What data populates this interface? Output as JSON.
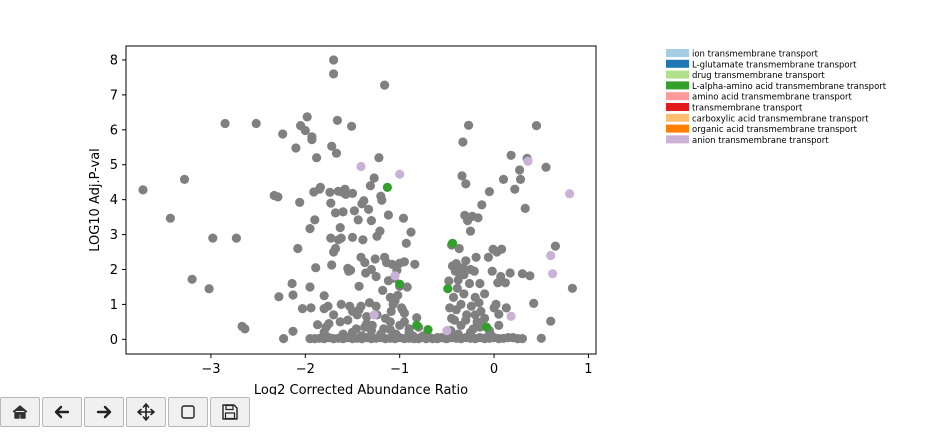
{
  "chart_data": {
    "type": "scatter",
    "title": "",
    "xlabel": "Log2 Corrected Abundance Ratio",
    "ylabel": "LOG10 Adj.P-val",
    "xlim": [
      -3.9,
      1.08
    ],
    "ylim": [
      -0.42,
      8.4
    ],
    "xticks": [
      -3,
      -2,
      -1,
      0,
      1
    ],
    "yticks": [
      0,
      1,
      2,
      3,
      4,
      5,
      6,
      7,
      8
    ],
    "xtick_labels": [
      "−3",
      "−2",
      "−1",
      "0",
      "1"
    ],
    "ytick_labels": [
      "0",
      "1",
      "2",
      "3",
      "4",
      "5",
      "6",
      "7",
      "8"
    ],
    "grid": false,
    "legend_position": "upper-right-outside",
    "legend": [
      {
        "label": "ion transmembrane transport",
        "color": "#a6cee3"
      },
      {
        "label": "L-glutamate transmembrane transport",
        "color": "#1f78b4"
      },
      {
        "label": "drug transmembrane transport",
        "color": "#b2df8a"
      },
      {
        "label": "L-alpha-amino acid transmembrane transport",
        "color": "#33a02c"
      },
      {
        "label": "amino acid transmembrane transport",
        "color": "#fb9a99"
      },
      {
        "label": "transmembrane transport",
        "color": "#e31a1c"
      },
      {
        "label": "carboxylic acid transmembrane transport",
        "color": "#fdbf6f"
      },
      {
        "label": "organic acid transmembrane transport",
        "color": "#ff7f00"
      },
      {
        "label": "anion transmembrane transport",
        "color": "#cab2d6"
      }
    ],
    "background_series": {
      "name": "",
      "color": "#808080",
      "points": [
        [
          -3.72,
          4.28
        ],
        [
          -3.43,
          3.47
        ],
        [
          -3.28,
          4.58
        ],
        [
          -3.2,
          1.72
        ],
        [
          -3.02,
          1.45
        ],
        [
          -2.98,
          2.9
        ],
        [
          -2.85,
          6.18
        ],
        [
          -2.73,
          2.9
        ],
        [
          -2.67,
          0.37
        ],
        [
          -2.64,
          0.3
        ],
        [
          -2.52,
          6.18
        ],
        [
          -2.33,
          4.12
        ],
        [
          -2.29,
          4.08
        ],
        [
          -2.28,
          1.22
        ],
        [
          -2.24,
          5.88
        ],
        [
          -2.23,
          0.02
        ],
        [
          -2.14,
          1.6
        ],
        [
          -2.13,
          1.27
        ],
        [
          -2.13,
          0.23
        ],
        [
          -2.1,
          5.48
        ],
        [
          -2.08,
          2.6
        ],
        [
          -2.06,
          3.92
        ],
        [
          -2.05,
          6.12
        ],
        [
          -2.03,
          0.88
        ],
        [
          -2.0,
          5.98
        ],
        [
          -1.98,
          6.37
        ],
        [
          -1.95,
          1.5
        ],
        [
          -1.94,
          0.9
        ],
        [
          -1.95,
          3.17
        ],
        [
          -1.93,
          5.8
        ],
        [
          -1.93,
          5.72
        ],
        [
          -1.91,
          4.22
        ],
        [
          -1.9,
          3.42
        ],
        [
          -1.89,
          2.05
        ],
        [
          -1.87,
          0.42
        ],
        [
          -1.88,
          5.2
        ],
        [
          -1.85,
          4.3
        ],
        [
          -1.84,
          4.35
        ],
        [
          -1.8,
          1.25
        ],
        [
          -1.8,
          0.88
        ],
        [
          -1.78,
          0.35
        ],
        [
          -1.76,
          0.95
        ],
        [
          -1.74,
          4.21
        ],
        [
          -1.73,
          3.9
        ],
        [
          -1.73,
          2.9
        ],
        [
          -1.72,
          2.13
        ],
        [
          -1.72,
          5.53
        ],
        [
          -1.7,
          8.0
        ],
        [
          -1.7,
          7.6
        ],
        [
          -1.7,
          2.5
        ],
        [
          -1.68,
          3.62
        ],
        [
          -1.68,
          2.6
        ],
        [
          -1.67,
          5.33
        ],
        [
          -1.66,
          6.27
        ],
        [
          -1.65,
          4.24
        ],
        [
          -1.65,
          2.85
        ],
        [
          -1.63,
          0.5
        ],
        [
          -1.63,
          3.2
        ],
        [
          -1.62,
          2.9
        ],
        [
          -1.62,
          1.0
        ],
        [
          -1.61,
          4.22
        ],
        [
          -1.6,
          3.65
        ],
        [
          -1.58,
          4.3
        ],
        [
          -1.57,
          4.15
        ],
        [
          -1.55,
          2.03
        ],
        [
          -1.54,
          1.95
        ],
        [
          -1.53,
          0.95
        ],
        [
          -1.52,
          1.98
        ],
        [
          -1.51,
          6.1
        ],
        [
          -1.5,
          0.8
        ],
        [
          -1.5,
          2.92
        ],
        [
          -1.5,
          4.18
        ],
        [
          -1.48,
          3.68
        ],
        [
          -1.46,
          0.3
        ],
        [
          -1.44,
          3.42
        ],
        [
          -1.43,
          0.85
        ],
        [
          -1.43,
          1.52
        ],
        [
          -1.41,
          0.95
        ],
        [
          -1.41,
          2.35
        ],
        [
          -1.4,
          3.88
        ],
        [
          -1.39,
          2.85
        ],
        [
          -1.38,
          3.97
        ],
        [
          -1.37,
          2.2
        ],
        [
          -1.37,
          0.35
        ],
        [
          -1.36,
          1.9
        ],
        [
          -1.35,
          0.65
        ],
        [
          -1.33,
          3.72
        ],
        [
          -1.32,
          1.05
        ],
        [
          -1.31,
          4.4
        ],
        [
          -1.3,
          2.0
        ],
        [
          -1.3,
          3.4
        ],
        [
          -1.29,
          0.4
        ],
        [
          -1.27,
          4.62
        ],
        [
          -1.26,
          2.3
        ],
        [
          -1.25,
          1.8
        ],
        [
          -1.24,
          2.95
        ],
        [
          -1.24,
          0.7
        ],
        [
          -1.22,
          5.2
        ],
        [
          -1.21,
          3.1
        ],
        [
          -1.2,
          4.1
        ],
        [
          -1.19,
          3.98
        ],
        [
          -1.18,
          1.4
        ],
        [
          -1.17,
          0.3
        ],
        [
          -1.16,
          7.28
        ],
        [
          -1.16,
          2.35
        ],
        [
          -1.14,
          2.2
        ],
        [
          -1.12,
          1.68
        ],
        [
          -1.12,
          3.56
        ],
        [
          -1.1,
          0.28
        ],
        [
          -1.1,
          1.2
        ],
        [
          -1.09,
          0.8
        ],
        [
          -1.08,
          2.15
        ],
        [
          -1.07,
          1.0
        ],
        [
          -1.06,
          1.75
        ],
        [
          -1.04,
          0.15
        ],
        [
          -1.03,
          1.98
        ],
        [
          -1.02,
          1.26
        ],
        [
          -1.0,
          2.18
        ],
        [
          -1.0,
          1.52
        ],
        [
          -0.98,
          0.9
        ],
        [
          -0.97,
          0.85
        ],
        [
          -0.96,
          3.47
        ],
        [
          -0.95,
          2.22
        ],
        [
          -0.95,
          0.5
        ],
        [
          -0.93,
          2.75
        ],
        [
          -0.92,
          1.5
        ],
        [
          -0.9,
          0.3
        ],
        [
          -0.88,
          3.07
        ],
        [
          -0.86,
          0.1
        ],
        [
          -0.84,
          2.15
        ],
        [
          -0.82,
          0.62
        ],
        [
          -0.8,
          0.35
        ],
        [
          -0.78,
          0.05
        ],
        [
          -0.75,
          0.1
        ],
        [
          -0.72,
          0.02
        ],
        [
          -0.68,
          0.05
        ],
        [
          -0.65,
          0.02
        ],
        [
          -0.6,
          0.02
        ],
        [
          -0.56,
          0.05
        ],
        [
          -0.52,
          0.03
        ],
        [
          -0.48,
          1.67
        ],
        [
          -0.47,
          0.9
        ],
        [
          -0.46,
          0.25
        ],
        [
          -0.45,
          2.7
        ],
        [
          -0.44,
          2.1
        ],
        [
          -0.43,
          1.2
        ],
        [
          -0.42,
          0.55
        ],
        [
          -0.41,
          1.95
        ],
        [
          -0.4,
          2.17
        ],
        [
          -0.39,
          1.46
        ],
        [
          -0.38,
          0.15
        ],
        [
          -0.37,
          2.6
        ],
        [
          -0.36,
          1.85
        ],
        [
          -0.35,
          0.4
        ],
        [
          -0.34,
          4.68
        ],
        [
          -0.33,
          5.65
        ],
        [
          -0.33,
          2.05
        ],
        [
          -0.32,
          1.3
        ],
        [
          -0.31,
          3.55
        ],
        [
          -0.3,
          4.45
        ],
        [
          -0.3,
          2.25
        ],
        [
          -0.29,
          0.7
        ],
        [
          -0.28,
          3.4
        ],
        [
          -0.27,
          6.13
        ],
        [
          -0.26,
          1.6
        ],
        [
          -0.25,
          3.1
        ],
        [
          -0.25,
          2.0
        ],
        [
          -0.24,
          0.95
        ],
        [
          -0.23,
          3.52
        ],
        [
          -0.22,
          0.3
        ],
        [
          -0.21,
          1.95
        ],
        [
          -0.2,
          1.2
        ],
        [
          -0.19,
          2.35
        ],
        [
          -0.18,
          0.5
        ],
        [
          -0.17,
          3.48
        ],
        [
          -0.16,
          1.05
        ],
        [
          -0.15,
          1.6
        ],
        [
          -0.14,
          0.8
        ],
        [
          -0.13,
          3.85
        ],
        [
          -0.12,
          0.4
        ],
        [
          -0.1,
          1.3
        ],
        [
          -0.08,
          0.05
        ],
        [
          -0.06,
          2.35
        ],
        [
          -0.05,
          4.23
        ],
        [
          -0.04,
          0.15
        ],
        [
          -0.02,
          1.95
        ],
        [
          -0.01,
          2.58
        ],
        [
          0.0,
          0.9
        ],
        [
          0.02,
          1.0
        ],
        [
          0.03,
          2.5
        ],
        [
          0.04,
          1.62
        ],
        [
          0.05,
          0.72
        ],
        [
          0.07,
          1.8
        ],
        [
          0.08,
          2.58
        ],
        [
          0.1,
          4.58
        ],
        [
          0.12,
          1.62
        ],
        [
          0.13,
          0.9
        ],
        [
          0.15,
          0.05
        ],
        [
          0.17,
          1.9
        ],
        [
          0.18,
          5.27
        ],
        [
          0.2,
          0.05
        ],
        [
          0.22,
          4.3
        ],
        [
          0.25,
          0.02
        ],
        [
          0.27,
          4.85
        ],
        [
          0.28,
          4.58
        ],
        [
          0.3,
          1.88
        ],
        [
          0.33,
          3.75
        ],
        [
          0.35,
          5.18
        ],
        [
          0.38,
          1.82
        ],
        [
          0.42,
          1.03
        ],
        [
          0.45,
          6.12
        ],
        [
          0.5,
          0.03
        ],
        [
          0.55,
          4.93
        ],
        [
          0.6,
          0.52
        ],
        [
          0.65,
          2.67
        ],
        [
          0.83,
          1.46
        ],
        [
          -1.95,
          0.02
        ],
        [
          -1.9,
          0.02
        ],
        [
          -1.85,
          0.03
        ],
        [
          -1.8,
          0.02
        ],
        [
          -1.75,
          0.05
        ],
        [
          -1.7,
          0.02
        ],
        [
          -1.65,
          0.03
        ],
        [
          -1.6,
          0.02
        ],
        [
          -1.55,
          0.05
        ],
        [
          -1.5,
          0.02
        ],
        [
          -1.45,
          0.03
        ],
        [
          -1.4,
          0.02
        ],
        [
          -1.35,
          0.05
        ],
        [
          -1.3,
          0.02
        ],
        [
          -1.25,
          0.03
        ],
        [
          -1.2,
          0.05
        ],
        [
          -1.15,
          0.02
        ],
        [
          -1.1,
          0.03
        ],
        [
          -1.05,
          0.02
        ],
        [
          -1.0,
          0.05
        ],
        [
          -0.95,
          0.02
        ],
        [
          -0.9,
          0.03
        ],
        [
          -0.85,
          0.02
        ],
        [
          -0.8,
          0.02
        ],
        [
          -0.7,
          0.05
        ],
        [
          -0.6,
          0.05
        ],
        [
          -0.5,
          0.02
        ],
        [
          -0.45,
          0.05
        ],
        [
          -0.4,
          0.03
        ],
        [
          -0.35,
          0.02
        ],
        [
          -0.3,
          0.05
        ],
        [
          -0.25,
          0.03
        ],
        [
          -0.2,
          0.02
        ],
        [
          -0.15,
          0.05
        ],
        [
          -0.1,
          0.02
        ],
        [
          -0.05,
          0.03
        ],
        [
          0.0,
          0.05
        ],
        [
          0.05,
          0.02
        ],
        [
          0.1,
          0.03
        ],
        [
          0.3,
          0.02
        ],
        [
          -1.6,
          0.15
        ],
        [
          -1.5,
          0.2
        ],
        [
          -1.4,
          0.1
        ],
        [
          -1.3,
          0.25
        ],
        [
          -1.2,
          0.15
        ],
        [
          -1.1,
          0.5
        ],
        [
          -1.0,
          0.4
        ],
        [
          -0.9,
          0.2
        ],
        [
          -0.45,
          0.6
        ],
        [
          -0.4,
          0.85
        ],
        [
          -0.35,
          1.0
        ],
        [
          -0.3,
          0.55
        ],
        [
          -0.25,
          0.2
        ],
        [
          -0.2,
          0.7
        ],
        [
          -0.15,
          0.35
        ],
        [
          -0.1,
          0.6
        ],
        [
          -0.05,
          0.25
        ],
        [
          0.05,
          0.4
        ],
        [
          -0.38,
          1.7
        ],
        [
          -0.32,
          1.85
        ],
        [
          -1.55,
          0.55
        ],
        [
          -1.45,
          0.7
        ],
        [
          -1.35,
          0.45
        ],
        [
          -1.25,
          0.95
        ],
        [
          -1.15,
          0.6
        ],
        [
          -1.05,
          1.1
        ],
        [
          -0.95,
          0.75
        ],
        [
          -1.7,
          0.7
        ],
        [
          -1.8,
          0.2
        ],
        [
          -1.75,
          0.45
        ]
      ]
    },
    "highlight_series": [
      {
        "name": "anion transmembrane transport",
        "color": "#cab2d6",
        "points": [
          [
            -1.41,
            4.95
          ],
          [
            -1.0,
            4.73
          ],
          [
            0.36,
            5.1
          ],
          [
            0.8,
            4.17
          ],
          [
            0.6,
            2.4
          ],
          [
            0.62,
            1.88
          ],
          [
            -1.05,
            1.82
          ],
          [
            0.18,
            0.66
          ],
          [
            -1.27,
            0.7
          ],
          [
            -0.5,
            0.25
          ]
        ]
      },
      {
        "name": "L-alpha-amino acid transmembrane transport",
        "color": "#33a02c",
        "points": [
          [
            -1.13,
            4.35
          ],
          [
            -0.44,
            2.75
          ],
          [
            -0.49,
            1.45
          ],
          [
            -1.0,
            1.58
          ],
          [
            -0.82,
            0.4
          ],
          [
            -0.7,
            0.28
          ],
          [
            -0.08,
            0.35
          ]
        ]
      }
    ]
  },
  "toolbar": {
    "buttons": [
      {
        "name": "home-icon"
      },
      {
        "name": "back-arrow-icon"
      },
      {
        "name": "forward-arrow-icon"
      },
      {
        "name": "pan-icon"
      },
      {
        "name": "zoom-rect-icon"
      },
      {
        "name": "save-icon"
      }
    ]
  }
}
